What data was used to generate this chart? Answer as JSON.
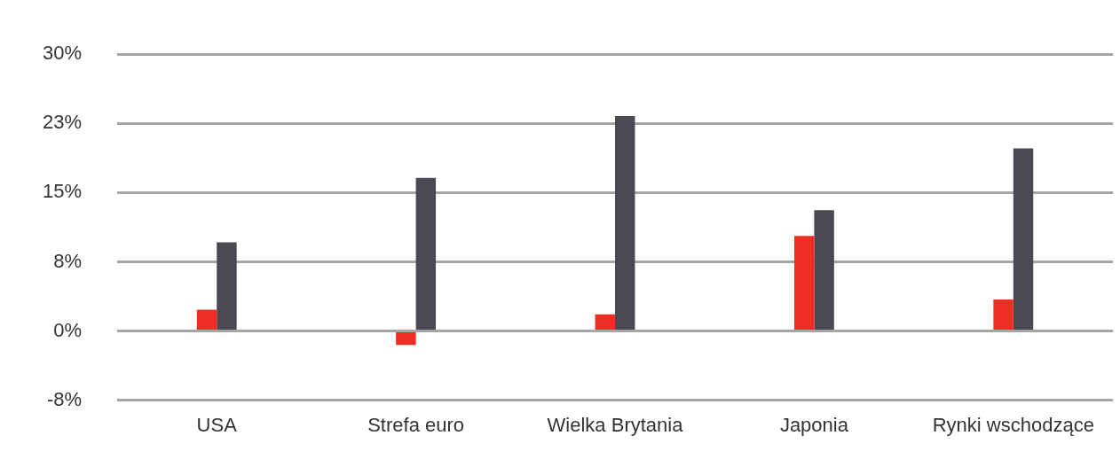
{
  "chart_data": {
    "type": "bar",
    "categories": [
      "USA",
      "Strefa euro",
      "Wielka Brytania",
      "Japonia",
      "Rynki wschodzące"
    ],
    "series": [
      {
        "color": "#ee2e24",
        "values": [
          2.3,
          -1.5,
          1.8,
          10.3,
          3.4
        ]
      },
      {
        "color": "#4a4850",
        "values": [
          9.6,
          16.6,
          23.3,
          13.1,
          19.8
        ]
      }
    ],
    "ylim": [
      -7.5,
      30
    ],
    "yticks": [
      {
        "value": -7.5,
        "label": "-8%"
      },
      {
        "value": 0,
        "label": "0%"
      },
      {
        "value": 7.5,
        "label": "8%"
      },
      {
        "value": 15,
        "label": "15%"
      },
      {
        "value": 22.5,
        "label": "23%"
      },
      {
        "value": 30,
        "label": "30%"
      }
    ],
    "grid": "y",
    "legend": false
  }
}
